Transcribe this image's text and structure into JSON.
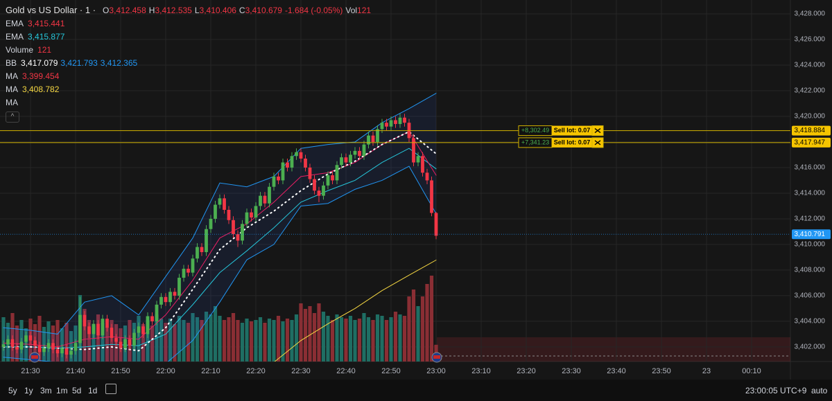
{
  "header": {
    "symbol": "Gold vs US Dollar · 1 ·",
    "ohlc": [
      {
        "key": "O",
        "value": "3,412.458"
      },
      {
        "key": "H",
        "value": "3,412.535"
      },
      {
        "key": "L",
        "value": "3,410.406"
      },
      {
        "key": "C",
        "value": "3,410.679"
      }
    ],
    "change": "-1.684 (-0.05%)",
    "vol_key": "Vol",
    "vol_value": "121"
  },
  "indicators_legend": [
    {
      "name": "EMA",
      "values": [
        "3,415.441"
      ],
      "colors": [
        "#f23645"
      ]
    },
    {
      "name": "EMA",
      "values": [
        "3,415.877"
      ],
      "colors": [
        "#26c6da"
      ]
    },
    {
      "name": "Volume",
      "values": [
        "121"
      ],
      "colors": [
        "#f23645"
      ]
    },
    {
      "name": "BB",
      "values": [
        "3,417.079",
        "3,421.793",
        "3,412.365"
      ],
      "colors": [
        "#ffffff",
        "#2196f3",
        "#2196f3"
      ]
    },
    {
      "name": "MA",
      "values": [
        "3,399.454"
      ],
      "colors": [
        "#f23645"
      ]
    },
    {
      "name": "MA",
      "values": [
        "3,408.782"
      ],
      "colors": [
        "#f5d742"
      ]
    },
    {
      "name": "MA",
      "values": [],
      "colors": []
    }
  ],
  "chart_data": {
    "type": "candlestick",
    "up_color": "#4caf50",
    "down_color": "#f23645",
    "ylim": [
      3400.86,
      3429.08
    ],
    "yticks": [
      {
        "value": 3428,
        "label": "3,428.000"
      },
      {
        "value": 3426,
        "label": "3,426.000"
      },
      {
        "value": 3424,
        "label": "3,424.000"
      },
      {
        "value": 3422,
        "label": "3,422.000"
      },
      {
        "value": 3420,
        "label": "3,420.000"
      },
      {
        "value": 3418,
        "label": "3,418.000"
      },
      {
        "value": 3416,
        "label": "3,416.000"
      },
      {
        "value": 3414,
        "label": "3,414.000"
      },
      {
        "value": 3412,
        "label": "3,412.000"
      },
      {
        "value": 3410,
        "label": "3,410.000"
      },
      {
        "value": 3408,
        "label": "3,408.000"
      },
      {
        "value": 3406,
        "label": "3,406.000"
      },
      {
        "value": 3404,
        "label": "3,404.000"
      },
      {
        "value": 3402,
        "label": "3,402.000"
      }
    ],
    "x_labels": [
      "21:30",
      "21:40",
      "21:50",
      "22:00",
      "22:10",
      "22:20",
      "22:30",
      "22:40",
      "22:50",
      "23:00",
      "23:10",
      "23:20",
      "23:30",
      "23:40",
      "23:50",
      "23",
      "00:10"
    ],
    "volume_ylim": [
      0,
      2610
    ],
    "candles": [
      [
        3402.0,
        3402.5,
        3401.7,
        3402.2
      ],
      [
        3402.2,
        3402.9,
        3401.9,
        3402.6
      ],
      [
        3402.6,
        3402.9,
        3401.7,
        3402.0
      ],
      [
        3402.0,
        3402.3,
        3401.5,
        3401.8
      ],
      [
        3401.8,
        3402.7,
        3401.5,
        3402.4
      ],
      [
        3402.4,
        3403.2,
        3402.1,
        3402.9
      ],
      [
        3402.9,
        3403.2,
        3402.2,
        3402.5
      ],
      [
        3402.5,
        3402.8,
        3401.8,
        3402.1
      ],
      [
        3402.1,
        3402.4,
        3401.3,
        3401.6
      ],
      [
        3401.6,
        3402.2,
        3401.3,
        3401.9
      ],
      [
        3401.9,
        3402.6,
        3401.6,
        3402.3
      ],
      [
        3402.3,
        3402.6,
        3401.5,
        3401.8
      ],
      [
        3401.8,
        3402.1,
        3401.2,
        3401.5
      ],
      [
        3401.5,
        3402.2,
        3401.2,
        3401.9
      ],
      [
        3401.9,
        3402.2,
        3401.1,
        3401.4
      ],
      [
        3401.4,
        3402.0,
        3401.1,
        3401.7
      ],
      [
        3401.7,
        3402.6,
        3401.4,
        3402.3
      ],
      [
        3402.3,
        3405.9,
        3402.0,
        3404.5
      ],
      [
        3404.5,
        3404.8,
        3403.3,
        3403.6
      ],
      [
        3403.6,
        3403.9,
        3402.7,
        3403.0
      ],
      [
        3403.0,
        3404.1,
        3402.7,
        3403.8
      ],
      [
        3403.8,
        3404.1,
        3402.6,
        3402.9
      ],
      [
        3402.9,
        3404.5,
        3402.6,
        3404.2
      ],
      [
        3404.2,
        3404.5,
        3403.2,
        3403.5
      ],
      [
        3403.5,
        3403.8,
        3402.4,
        3402.7
      ],
      [
        3402.7,
        3403.0,
        3402.1,
        3402.4
      ],
      [
        3402.4,
        3402.7,
        3401.6,
        3401.9
      ],
      [
        3401.9,
        3402.9,
        3401.6,
        3402.6
      ],
      [
        3402.6,
        3402.9,
        3401.8,
        3402.1
      ],
      [
        3402.1,
        3403.4,
        3401.8,
        3403.1
      ],
      [
        3403.1,
        3403.9,
        3402.8,
        3403.6
      ],
      [
        3403.6,
        3403.9,
        3402.7,
        3403.0
      ],
      [
        3403.0,
        3404.7,
        3402.7,
        3404.4
      ],
      [
        3404.4,
        3404.7,
        3403.7,
        3404.0
      ],
      [
        3404.0,
        3405.6,
        3403.7,
        3405.3
      ],
      [
        3405.3,
        3406.2,
        3405.0,
        3405.9
      ],
      [
        3405.9,
        3406.2,
        3405.2,
        3405.5
      ],
      [
        3405.5,
        3406.6,
        3405.2,
        3406.3
      ],
      [
        3406.3,
        3406.6,
        3405.7,
        3406.0
      ],
      [
        3406.0,
        3407.7,
        3405.7,
        3407.4
      ],
      [
        3407.4,
        3408.4,
        3407.1,
        3408.1
      ],
      [
        3408.1,
        3408.4,
        3407.5,
        3407.8
      ],
      [
        3407.8,
        3409.2,
        3407.5,
        3408.9
      ],
      [
        3408.9,
        3410.1,
        3408.6,
        3409.8
      ],
      [
        3409.8,
        3410.1,
        3409.1,
        3409.4
      ],
      [
        3409.4,
        3411.5,
        3409.1,
        3411.2
      ],
      [
        3411.2,
        3412.3,
        3410.9,
        3412.0
      ],
      [
        3412.0,
        3413.4,
        3411.7,
        3413.1
      ],
      [
        3413.1,
        3413.9,
        3412.8,
        3413.6
      ],
      [
        3413.6,
        3413.9,
        3412.4,
        3412.7
      ],
      [
        3412.7,
        3413.0,
        3411.6,
        3411.9
      ],
      [
        3411.9,
        3412.2,
        3410.5,
        3410.8
      ],
      [
        3410.8,
        3411.1,
        3409.8,
        3410.3
      ],
      [
        3410.3,
        3411.9,
        3410.0,
        3411.6
      ],
      [
        3411.6,
        3412.8,
        3411.3,
        3412.5
      ],
      [
        3412.5,
        3412.8,
        3411.8,
        3412.1
      ],
      [
        3412.1,
        3413.3,
        3411.8,
        3413.0
      ],
      [
        3413.0,
        3414.1,
        3412.7,
        3413.8
      ],
      [
        3413.8,
        3414.1,
        3412.9,
        3413.2
      ],
      [
        3413.2,
        3414.8,
        3412.9,
        3414.5
      ],
      [
        3414.5,
        3415.6,
        3414.2,
        3415.3
      ],
      [
        3415.3,
        3415.6,
        3414.7,
        3415.0
      ],
      [
        3415.0,
        3416.7,
        3414.7,
        3416.4
      ],
      [
        3416.4,
        3416.7,
        3415.7,
        3416.0
      ],
      [
        3416.0,
        3417.2,
        3415.7,
        3416.9
      ],
      [
        3416.9,
        3417.5,
        3416.6,
        3417.2
      ],
      [
        3417.2,
        3417.5,
        3416.4,
        3416.7
      ],
      [
        3416.7,
        3417.0,
        3415.7,
        3416.0
      ],
      [
        3416.0,
        3416.3,
        3414.8,
        3415.1
      ],
      [
        3415.1,
        3415.4,
        3413.9,
        3414.2
      ],
      [
        3414.2,
        3414.5,
        3413.3,
        3413.8
      ],
      [
        3413.8,
        3414.9,
        3413.5,
        3414.6
      ],
      [
        3414.6,
        3415.7,
        3414.3,
        3415.4
      ],
      [
        3415.4,
        3415.7,
        3414.7,
        3415.0
      ],
      [
        3415.0,
        3416.5,
        3414.7,
        3416.2
      ],
      [
        3416.2,
        3417.1,
        3415.9,
        3416.8
      ],
      [
        3416.8,
        3417.1,
        3416.1,
        3416.4
      ],
      [
        3416.4,
        3417.3,
        3416.1,
        3417.0
      ],
      [
        3417.0,
        3417.6,
        3416.7,
        3417.3
      ],
      [
        3417.3,
        3417.6,
        3416.6,
        3416.9
      ],
      [
        3416.9,
        3418.1,
        3416.6,
        3417.8
      ],
      [
        3417.8,
        3418.8,
        3417.5,
        3418.5
      ],
      [
        3418.5,
        3418.8,
        3417.7,
        3418.0
      ],
      [
        3418.0,
        3419.3,
        3417.7,
        3419.0
      ],
      [
        3419.0,
        3419.8,
        3418.7,
        3419.5
      ],
      [
        3419.5,
        3419.8,
        3418.9,
        3419.2
      ],
      [
        3419.2,
        3420.0,
        3418.9,
        3419.7
      ],
      [
        3419.7,
        3420.0,
        3419.1,
        3419.4
      ],
      [
        3419.4,
        3420.2,
        3419.1,
        3419.9
      ],
      [
        3419.9,
        3420.2,
        3419.2,
        3419.5
      ],
      [
        3419.5,
        3419.8,
        3418.0,
        3418.3
      ],
      [
        3418.3,
        3418.6,
        3416.1,
        3416.4
      ],
      [
        3416.4,
        3417.2,
        3416.1,
        3416.9
      ],
      [
        3416.9,
        3417.2,
        3415.3,
        3415.6
      ],
      [
        3415.6,
        3415.9,
        3414.7,
        3415.0
      ],
      [
        3415.0,
        3415.3,
        3412.2,
        3412.458
      ],
      [
        3412.458,
        3412.535,
        3410.406,
        3410.679
      ]
    ],
    "volumes": [
      320,
      280,
      350,
      260,
      300,
      240,
      310,
      270,
      330,
      250,
      290,
      260,
      300,
      240,
      280,
      220,
      260,
      480,
      380,
      300,
      260,
      340,
      280,
      250,
      300,
      270,
      240,
      260,
      300,
      280,
      330,
      270,
      300,
      260,
      340,
      310,
      280,
      310,
      270,
      330,
      300,
      280,
      350,
      320,
      300,
      360,
      340,
      400,
      330,
      300,
      320,
      350,
      300,
      280,
      310,
      290,
      300,
      320,
      280,
      310,
      300,
      330,
      290,
      310,
      300,
      340,
      420,
      380,
      400,
      350,
      420,
      360,
      330,
      300,
      340,
      320,
      310,
      330,
      300,
      310,
      350,
      320,
      300,
      340,
      330,
      300,
      320,
      360,
      340,
      330,
      470,
      520,
      400,
      470,
      560,
      620,
      121
    ],
    "indicators": {
      "sample_index": [
        0,
        6,
        12,
        18,
        24,
        30,
        36,
        42,
        48,
        54,
        60,
        66,
        72,
        78,
        84,
        90,
        96
      ],
      "lines": [
        {
          "color": "#2196f3",
          "values": [
            3403.5,
            3403.3,
            3403.0,
            3405.5,
            3406.0,
            3404.5,
            3407.5,
            3410.5,
            3414.8,
            3414.5,
            3415.3,
            3417.5,
            3417.8,
            3418.0,
            3419.5,
            3420.6,
            3421.8
          ]
        },
        {
          "color": "#2196f3",
          "values": [
            3401.2,
            3401.0,
            3400.8,
            3400.5,
            3400.5,
            3400.8,
            3400.7,
            3402.5,
            3405.5,
            3408.8,
            3410.0,
            3413.0,
            3413.2,
            3414.3,
            3415.0,
            3416.1,
            3412.4
          ]
        },
        {
          "color": "#26c6da",
          "values": [
            3402.0,
            3402.0,
            3401.9,
            3402.0,
            3402.2,
            3402.1,
            3403.0,
            3405.3,
            3407.8,
            3409.5,
            3411.3,
            3413.3,
            3414.2,
            3415.0,
            3416.4,
            3417.5,
            3415.9
          ]
        },
        {
          "color": "#e91e63",
          "values": [
            3402.3,
            3402.2,
            3402.0,
            3402.6,
            3402.8,
            3402.6,
            3404.5,
            3407.2,
            3410.5,
            3411.6,
            3413.3,
            3415.3,
            3415.6,
            3416.4,
            3417.8,
            3418.8,
            3415.4
          ]
        },
        {
          "color": "#ffffff",
          "dotted": true,
          "values": [
            3402.0,
            3402.0,
            3401.9,
            3401.8,
            3402.0,
            3401.7,
            3403.5,
            3406.5,
            3409.6,
            3411.3,
            3412.6,
            3414.2,
            3415.5,
            3416.5,
            3417.8,
            3418.8,
            3417.08
          ]
        },
        {
          "color": "#f5d742",
          "values": [
            null,
            null,
            null,
            null,
            null,
            null,
            null,
            null,
            null,
            null,
            3400.8,
            3402.5,
            3403.8,
            3405.0,
            3406.4,
            3407.6,
            3408.78
          ]
        }
      ]
    },
    "orders": [
      {
        "price": 3418.884,
        "price_label": "3,418.884",
        "pnl": "+8,302.49",
        "text": "Sell lot: 0.07"
      },
      {
        "price": 3417.947,
        "price_label": "3,417.947",
        "pnl": "+7,341.23",
        "text": "Sell lot: 0.07"
      }
    ],
    "last_price": {
      "value": 3410.791,
      "label": "3,410.791"
    }
  },
  "toolbar": {
    "ranges": [
      "5y",
      "1y",
      "3m",
      "1m",
      "5d",
      "1d"
    ],
    "clock": "23:00:05 UTC+9",
    "scale": "auto"
  }
}
